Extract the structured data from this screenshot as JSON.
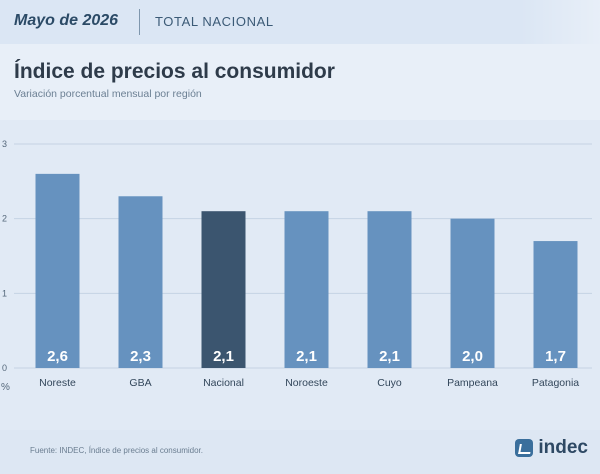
{
  "header": {
    "period": "Mayo de 2026",
    "scope": "TOTAL NACIONAL"
  },
  "footer": {
    "source": "Fuente: INDEC, Índice de precios al consumidor.",
    "logo_text": "indec"
  },
  "chart_data": {
    "type": "bar",
    "title": "Índice de precios al consumidor",
    "subtitle": "Variación porcentual mensual por región",
    "ylabel": "%",
    "ylim": [
      0,
      3
    ],
    "yticks": [
      0,
      1,
      2,
      3
    ],
    "grid": true,
    "categories": [
      "Noreste",
      "GBA",
      "Nacional",
      "Noroeste",
      "Cuyo",
      "Pampeana",
      "Patagonia"
    ],
    "values": [
      2.6,
      2.3,
      2.1,
      2.1,
      2.1,
      2.0,
      1.7
    ],
    "value_labels": [
      "2,6",
      "2,3",
      "2,1",
      "2,1",
      "2,1",
      "2,0",
      "1,7"
    ],
    "highlight": "Nacional",
    "colors": {
      "bar": "#6692bf",
      "highlight": "#3b556f",
      "label": "#ffffff"
    }
  }
}
